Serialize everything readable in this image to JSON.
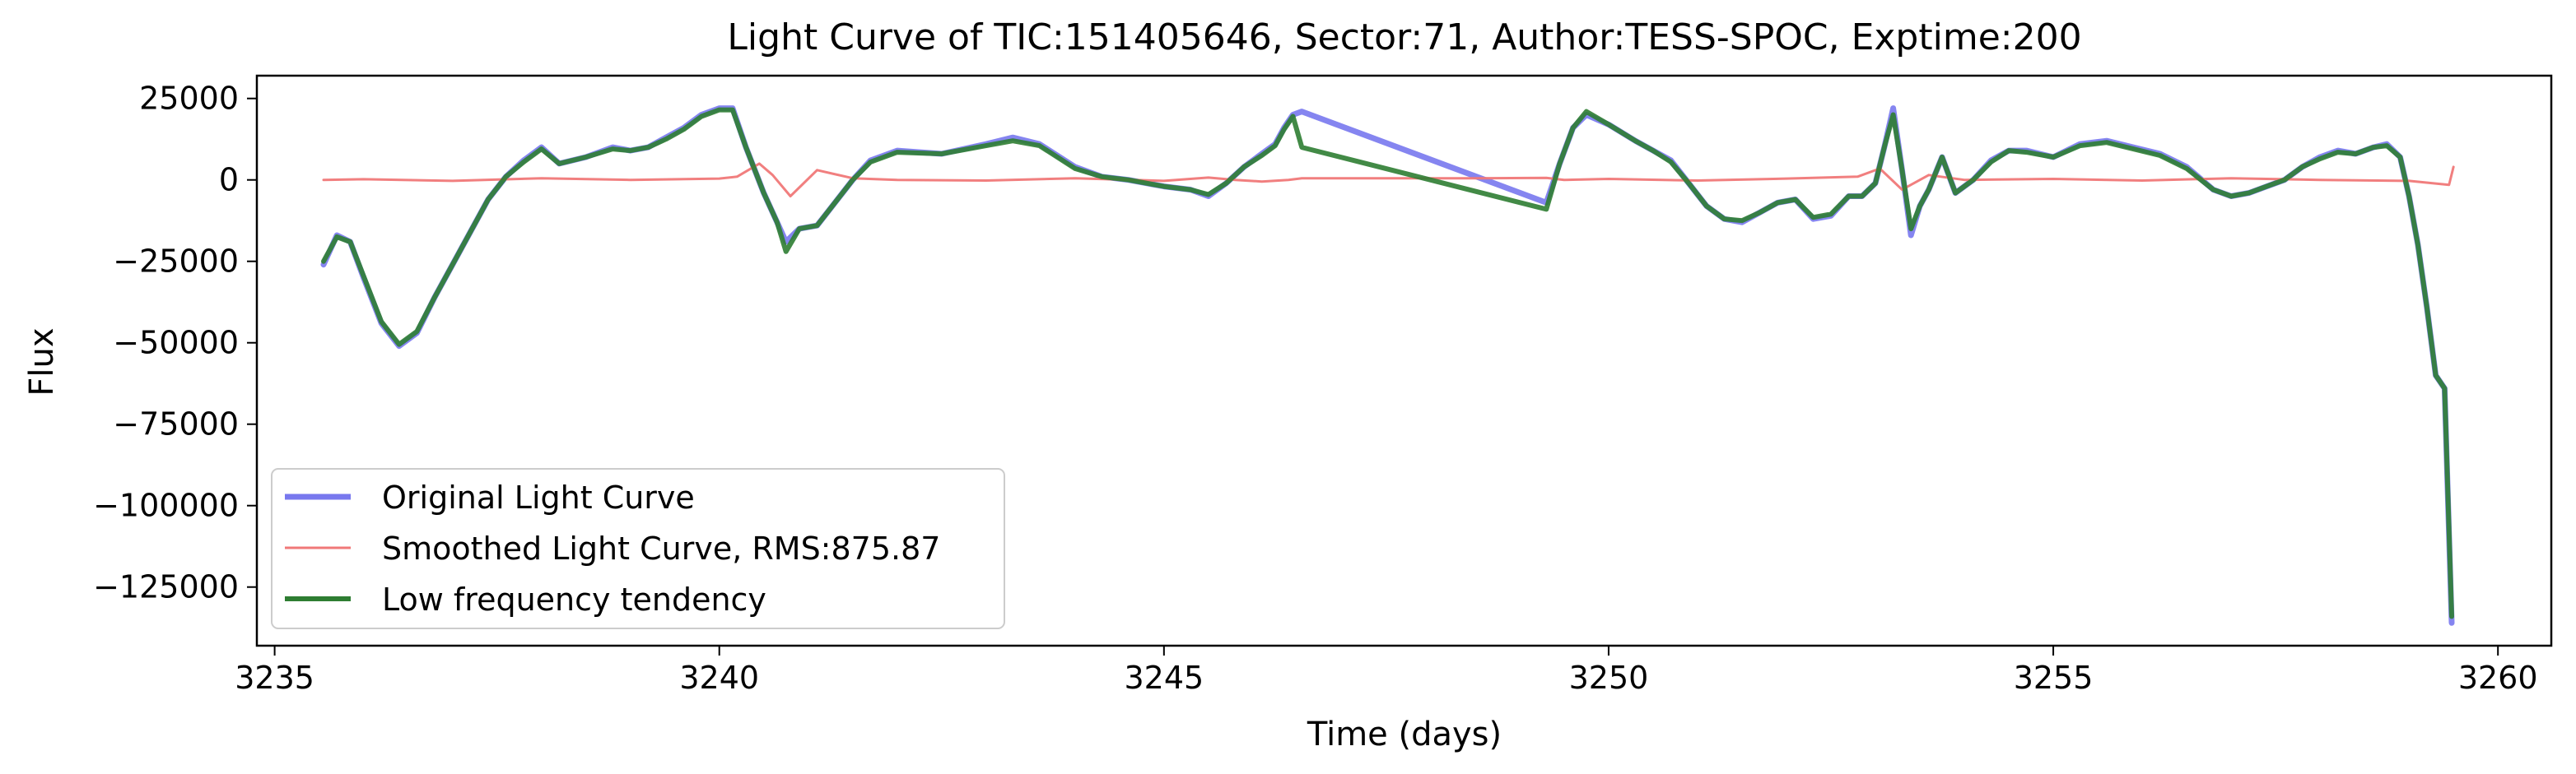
{
  "chart_data": {
    "type": "line",
    "title": "Light Curve of TIC:151405646, Sector:71, Author:TESS-SPOC, Exptime:200",
    "xlabel": "Time (days)",
    "ylabel": "Flux",
    "xlim": [
      3234.8,
      3260.6
    ],
    "ylim": [
      -143000,
      32000
    ],
    "x_ticks": [
      3235,
      3240,
      3245,
      3250,
      3255,
      3260
    ],
    "y_ticks": [
      25000,
      0,
      -25000,
      -50000,
      -75000,
      -100000,
      -125000
    ],
    "x_tick_labels": [
      "3235",
      "3240",
      "3245",
      "3250",
      "3255",
      "3260"
    ],
    "y_tick_labels": [
      "25000",
      "0",
      "−25000",
      "−50000",
      "−75000",
      "−100000",
      "−125000"
    ],
    "grid": false,
    "legend_position": "lower-left",
    "series": [
      {
        "name": "Original Light Curve",
        "color": "#7878ee",
        "x": [
          3235.55,
          3235.7,
          3235.85,
          3236.0,
          3236.2,
          3236.4,
          3236.6,
          3236.8,
          3237.0,
          3237.2,
          3237.4,
          3237.6,
          3237.8,
          3238.0,
          3238.2,
          3238.5,
          3238.8,
          3239.0,
          3239.2,
          3239.4,
          3239.6,
          3239.8,
          3240.0,
          3240.15,
          3240.3,
          3240.5,
          3240.65,
          3240.75,
          3240.9,
          3241.1,
          3241.3,
          3241.5,
          3241.7,
          3242.0,
          3242.5,
          3243.0,
          3243.3,
          3243.6,
          3244.0,
          3244.3,
          3244.6,
          3245.0,
          3245.3,
          3245.5,
          3245.7,
          3245.9,
          3246.1,
          3246.25,
          3246.35,
          3246.45,
          3246.55,
          3249.3,
          3249.45,
          3249.6,
          3249.75,
          3250.0,
          3250.3,
          3250.5,
          3250.7,
          3250.9,
          3251.1,
          3251.3,
          3251.5,
          3251.7,
          3251.9,
          3252.1,
          3252.3,
          3252.5,
          3252.7,
          3252.85,
          3253.0,
          3253.1,
          3253.2,
          3253.3,
          3253.4,
          3253.5,
          3253.6,
          3253.75,
          3253.9,
          3254.1,
          3254.3,
          3254.5,
          3254.7,
          3255.0,
          3255.3,
          3255.6,
          3255.9,
          3256.2,
          3256.5,
          3256.8,
          3257.0,
          3257.2,
          3257.4,
          3257.6,
          3257.8,
          3258.0,
          3258.2,
          3258.4,
          3258.6,
          3258.75,
          3258.9,
          3259.0,
          3259.1,
          3259.2,
          3259.3,
          3259.4,
          3259.48
        ],
        "values": [
          -26000,
          -17000,
          -19000,
          -30000,
          -44000,
          -51000,
          -47000,
          -36000,
          -26000,
          -16000,
          -6000,
          1000,
          6000,
          10000,
          5000,
          7000,
          10000,
          9000,
          10000,
          13000,
          16000,
          20000,
          22000,
          22000,
          10000,
          -4000,
          -13000,
          -19000,
          -15000,
          -14000,
          -7000,
          0,
          6000,
          9000,
          8000,
          11000,
          13000,
          11000,
          4000,
          1000,
          0,
          -2000,
          -3000,
          -5000,
          -1000,
          4000,
          8000,
          11000,
          16000,
          20000,
          21000,
          -7000,
          5000,
          16000,
          20000,
          17000,
          12000,
          9000,
          6000,
          -1000,
          -8000,
          -12000,
          -13000,
          -10000,
          -7000,
          -6000,
          -12000,
          -11000,
          -5000,
          -5000,
          -1000,
          10000,
          22000,
          3000,
          -17000,
          -8000,
          -3000,
          7000,
          -4000,
          0,
          6000,
          9000,
          9000,
          7000,
          11000,
          12000,
          10000,
          8000,
          4000,
          -3000,
          -5000,
          -4000,
          -2000,
          0,
          4000,
          7000,
          9000,
          8000,
          10000,
          11000,
          7000,
          -5000,
          -20000,
          -39000,
          -60000,
          -64000,
          -136000
        ]
      },
      {
        "name": "Smoothed Light Curve, RMS:875.87",
        "color": "#f07878",
        "x": [
          3235.55,
          3236.0,
          3237.0,
          3238.0,
          3239.0,
          3240.0,
          3240.2,
          3240.45,
          3240.6,
          3240.8,
          3241.1,
          3241.5,
          3242.0,
          3243.0,
          3244.0,
          3245.0,
          3245.5,
          3245.8,
          3246.1,
          3246.4,
          3246.55,
          3247.5,
          3248.5,
          3249.3,
          3249.5,
          3250.0,
          3251.0,
          3252.0,
          3252.8,
          3253.05,
          3253.3,
          3253.6,
          3254.0,
          3255.0,
          3256.0,
          3257.0,
          3258.0,
          3259.0,
          3259.45,
          3259.5
        ],
        "values": [
          0,
          200,
          -300,
          500,
          0,
          400,
          1000,
          5000,
          1500,
          -5000,
          3000,
          500,
          0,
          -200,
          500,
          -300,
          700,
          0,
          -500,
          0,
          500,
          500,
          500,
          600,
          0,
          300,
          -200,
          400,
          1000,
          3500,
          -3000,
          1500,
          0,
          300,
          -200,
          500,
          0,
          -300,
          -1500,
          4000
        ]
      },
      {
        "name": "Low frequency tendency",
        "color": "#2e7d32",
        "x": [
          3235.55,
          3235.7,
          3235.85,
          3236.0,
          3236.2,
          3236.4,
          3236.6,
          3236.8,
          3237.0,
          3237.2,
          3237.4,
          3237.6,
          3237.8,
          3238.0,
          3238.2,
          3238.5,
          3238.8,
          3239.0,
          3239.2,
          3239.4,
          3239.6,
          3239.8,
          3240.0,
          3240.15,
          3240.3,
          3240.5,
          3240.65,
          3240.75,
          3240.9,
          3241.1,
          3241.3,
          3241.5,
          3241.7,
          3242.0,
          3242.5,
          3243.0,
          3243.3,
          3243.6,
          3244.0,
          3244.3,
          3244.6,
          3245.0,
          3245.3,
          3245.5,
          3245.7,
          3245.9,
          3246.1,
          3246.25,
          3246.35,
          3246.45,
          3246.55,
          3249.3,
          3249.45,
          3249.6,
          3249.75,
          3250.0,
          3250.3,
          3250.5,
          3250.7,
          3250.9,
          3251.1,
          3251.3,
          3251.5,
          3251.7,
          3251.9,
          3252.1,
          3252.3,
          3252.5,
          3252.7,
          3252.85,
          3253.0,
          3253.1,
          3253.2,
          3253.3,
          3253.4,
          3253.5,
          3253.6,
          3253.75,
          3253.9,
          3254.1,
          3254.3,
          3254.5,
          3254.7,
          3255.0,
          3255.3,
          3255.6,
          3255.9,
          3256.2,
          3256.5,
          3256.8,
          3257.0,
          3257.2,
          3257.4,
          3257.6,
          3257.8,
          3258.0,
          3258.2,
          3258.4,
          3258.6,
          3258.75,
          3258.9,
          3259.0,
          3259.1,
          3259.2,
          3259.3,
          3259.4,
          3259.48
        ],
        "values": [
          -25000,
          -17500,
          -19000,
          -29500,
          -43500,
          -50500,
          -46500,
          -36000,
          -26000,
          -16000,
          -6000,
          1000,
          5500,
          9500,
          5000,
          7000,
          9500,
          9000,
          10000,
          12500,
          15500,
          19500,
          21500,
          21500,
          10000,
          -4000,
          -13000,
          -22000,
          -15000,
          -14000,
          -7000,
          0,
          5500,
          8500,
          8000,
          10500,
          12000,
          10500,
          3500,
          1000,
          0,
          -2000,
          -3000,
          -4500,
          -1000,
          4000,
          7500,
          10500,
          15500,
          19500,
          10000,
          -9000,
          5000,
          16000,
          21000,
          17000,
          12000,
          9000,
          5500,
          -1000,
          -8000,
          -12000,
          -12500,
          -10000,
          -7000,
          -6000,
          -11500,
          -10500,
          -5000,
          -5000,
          -1000,
          10000,
          20000,
          3000,
          -15000,
          -8000,
          -3000,
          7000,
          -4000,
          0,
          5500,
          9000,
          8500,
          7000,
          10500,
          11500,
          9500,
          7500,
          3500,
          -3000,
          -5000,
          -4000,
          -2000,
          0,
          4000,
          6500,
          8500,
          8000,
          10000,
          10500,
          7000,
          -5000,
          -20000,
          -39000,
          -60000,
          -64000,
          -134000
        ]
      }
    ]
  }
}
